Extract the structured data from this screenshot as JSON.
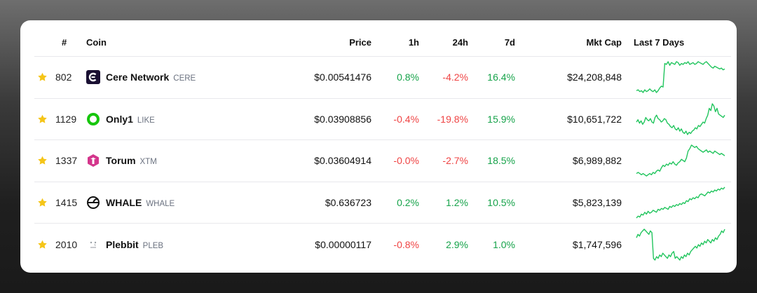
{
  "colors": {
    "positive": "#16a34a",
    "negative": "#ef4444",
    "star": "#f5c518",
    "spark": "#22c55e"
  },
  "header": {
    "rank": "#",
    "coin": "Coin",
    "price": "Price",
    "h1": "1h",
    "h24": "24h",
    "d7": "7d",
    "mcap": "Mkt Cap",
    "chart": "Last 7 Days"
  },
  "rows": [
    {
      "icon": "cere-network-icon",
      "rank": "802",
      "name": "Cere Network",
      "symbol": "CERE",
      "price": "$0.00541476",
      "h1": "0.8%",
      "h24": "-4.2%",
      "d7": "16.4%",
      "mcap": "$24,208,848",
      "spark": [
        30,
        31,
        29,
        30,
        28,
        31,
        29,
        30,
        32,
        30,
        29,
        31,
        28,
        30,
        33,
        35,
        34,
        60,
        59,
        62,
        58,
        61,
        60,
        59,
        62,
        61,
        58,
        60,
        59,
        61,
        60,
        62,
        59,
        60,
        61,
        59,
        60,
        62,
        61,
        60,
        59,
        61,
        62,
        60,
        58,
        56,
        55,
        57,
        56,
        55,
        54,
        55,
        53,
        54
      ]
    },
    {
      "icon": "only1-icon",
      "rank": "1129",
      "name": "Only1",
      "symbol": "LIKE",
      "price": "$0.03908856",
      "h1": "-0.4%",
      "h24": "-19.8%",
      "d7": "15.9%",
      "mcap": "$10,651,722",
      "spark": [
        40,
        42,
        39,
        41,
        38,
        40,
        44,
        42,
        41,
        43,
        40,
        39,
        44,
        46,
        43,
        42,
        40,
        41,
        43,
        42,
        39,
        38,
        36,
        35,
        37,
        34,
        33,
        35,
        32,
        34,
        31,
        30,
        32,
        29,
        31,
        30,
        32,
        33,
        35,
        34,
        37,
        36,
        38,
        40,
        39,
        43,
        46,
        52,
        50,
        56,
        54,
        49,
        52,
        47,
        46,
        45,
        44,
        46
      ]
    },
    {
      "icon": "torum-icon",
      "rank": "1337",
      "name": "Torum",
      "symbol": "XTM",
      "price": "$0.03604914",
      "h1": "-0.0%",
      "h24": "-2.7%",
      "d7": "18.5%",
      "mcap": "$6,989,882",
      "spark": [
        25,
        26,
        25,
        24,
        25,
        24,
        23,
        24,
        25,
        24,
        26,
        25,
        27,
        28,
        27,
        30,
        32,
        31,
        33,
        32,
        34,
        33,
        35,
        33,
        32,
        34,
        35,
        37,
        36,
        35,
        38,
        44,
        46,
        49,
        48,
        47,
        48,
        46,
        45,
        44,
        43,
        44,
        45,
        43,
        44,
        43,
        42,
        44,
        43,
        42,
        41,
        42,
        41,
        40
      ]
    },
    {
      "icon": "whale-icon",
      "rank": "1415",
      "name": "WHALE",
      "symbol": "WHALE",
      "price": "$0.636723",
      "h1": "0.2%",
      "h24": "1.2%",
      "d7": "10.5%",
      "mcap": "$5,823,139",
      "spark": [
        18,
        20,
        19,
        22,
        21,
        24,
        22,
        25,
        23,
        24,
        26,
        25,
        24,
        27,
        26,
        28,
        27,
        29,
        28,
        27,
        30,
        29,
        31,
        30,
        32,
        31,
        33,
        32,
        34,
        33,
        36,
        35,
        38,
        37,
        39,
        38,
        40,
        39,
        42,
        43,
        42,
        41,
        43,
        45,
        44,
        46,
        45,
        47,
        46,
        48,
        47,
        49,
        48,
        50
      ]
    },
    {
      "icon": "plebbit-icon",
      "rank": "2010",
      "name": "Plebbit",
      "symbol": "PLEB",
      "price": "$0.00000117",
      "h1": "-0.8%",
      "h24": "2.9%",
      "d7": "1.0%",
      "mcap": "$1,747,596",
      "spark": [
        42,
        44,
        43,
        45,
        46,
        47,
        46,
        45,
        44,
        46,
        45,
        30,
        29,
        31,
        30,
        32,
        31,
        33,
        32,
        31,
        30,
        32,
        31,
        33,
        34,
        30,
        31,
        30,
        29,
        31,
        30,
        32,
        31,
        33,
        32,
        34,
        35,
        36,
        37,
        36,
        38,
        37,
        39,
        38,
        40,
        39,
        41,
        40,
        39,
        41,
        40,
        42,
        41,
        43,
        44,
        46,
        45,
        47
      ]
    }
  ]
}
